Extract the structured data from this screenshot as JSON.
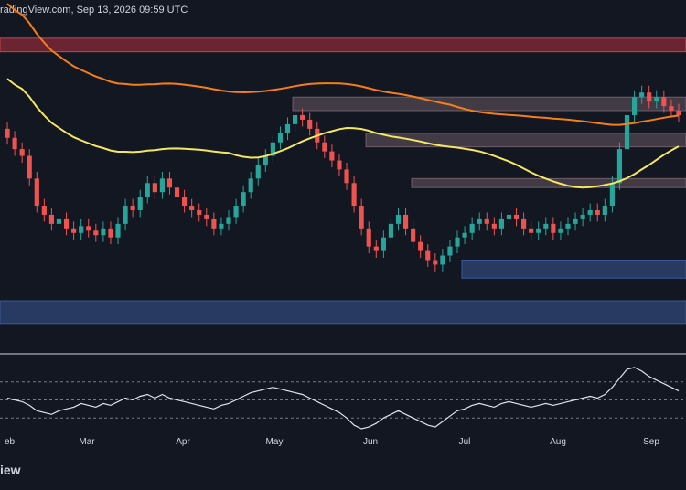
{
  "header": {
    "text": "radingView.com, Sep 13, 2026 09:59 UTC"
  },
  "footer": {
    "logo_text": "iew"
  },
  "colors": {
    "background": "#131722",
    "candle_up": "#26a69a",
    "candle_down": "#ef5350",
    "ma_orange": "#f57f17",
    "ma_yellow": "#f5e663",
    "resistance_zone": "#b0909a",
    "resistance_zone_top": "#8a2a38",
    "support_zone": "#3b5898",
    "rsi_line": "#e0e3eb"
  },
  "chart_data": {
    "type": "candlestick",
    "x_tick_labels": [
      "eb",
      "Mar",
      "Apr",
      "May",
      "Jun",
      "Jul",
      "Aug",
      "Sep"
    ],
    "closes": [
      0.6,
      0.55,
      0.52,
      0.42,
      0.3,
      0.26,
      0.22,
      0.24,
      0.2,
      0.18,
      0.21,
      0.19,
      0.17,
      0.2,
      0.16,
      0.22,
      0.3,
      0.28,
      0.34,
      0.4,
      0.36,
      0.42,
      0.38,
      0.34,
      0.3,
      0.28,
      0.26,
      0.24,
      0.2,
      0.22,
      0.25,
      0.3,
      0.36,
      0.42,
      0.48,
      0.52,
      0.58,
      0.62,
      0.66,
      0.7,
      0.68,
      0.64,
      0.58,
      0.54,
      0.5,
      0.46,
      0.4,
      0.3,
      0.2,
      0.12,
      0.1,
      0.16,
      0.22,
      0.26,
      0.2,
      0.14,
      0.1,
      0.06,
      0.04,
      0.08,
      0.12,
      0.16,
      0.18,
      0.22,
      0.24,
      0.22,
      0.2,
      0.24,
      0.26,
      0.24,
      0.2,
      0.18,
      0.2,
      0.22,
      0.18,
      0.2,
      0.22,
      0.24,
      0.26,
      0.28,
      0.26,
      0.3,
      0.4,
      0.55,
      0.7,
      0.78,
      0.8,
      0.76,
      0.78,
      0.74,
      0.72,
      0.7
    ],
    "moving_averages": [
      {
        "color": "#f57f17"
      },
      {
        "color": "#f5e663"
      }
    ],
    "zones": [
      {
        "kind": "resistance",
        "low": 0.98,
        "high": 1.04
      },
      {
        "kind": "resistance",
        "low": 0.72,
        "high": 0.78
      },
      {
        "kind": "resistance",
        "low": 0.56,
        "high": 0.62
      },
      {
        "kind": "resistance",
        "low": 0.38,
        "high": 0.42
      },
      {
        "kind": "support",
        "low": -0.02,
        "high": 0.06
      },
      {
        "kind": "support",
        "low": -0.22,
        "high": -0.12
      }
    ],
    "rsi": [
      52,
      50,
      48,
      44,
      38,
      36,
      34,
      38,
      40,
      42,
      46,
      44,
      42,
      46,
      44,
      48,
      52,
      50,
      54,
      56,
      52,
      56,
      52,
      50,
      48,
      46,
      44,
      42,
      40,
      44,
      46,
      50,
      54,
      58,
      60,
      62,
      64,
      62,
      60,
      58,
      56,
      52,
      48,
      44,
      40,
      36,
      30,
      22,
      18,
      20,
      24,
      30,
      34,
      38,
      34,
      30,
      26,
      22,
      20,
      26,
      32,
      38,
      40,
      44,
      46,
      44,
      42,
      46,
      48,
      46,
      44,
      42,
      44,
      46,
      44,
      46,
      48,
      50,
      52,
      54,
      52,
      56,
      64,
      74,
      84,
      86,
      82,
      76,
      72,
      68,
      64,
      60
    ],
    "rsi_levels": [
      70,
      50,
      30
    ]
  }
}
